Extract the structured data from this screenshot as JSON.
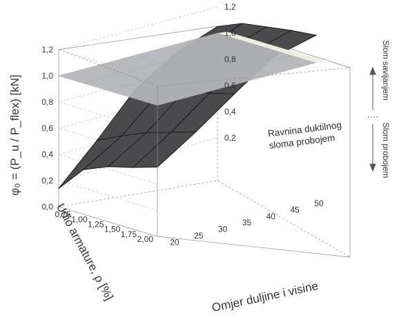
{
  "chart_data": {
    "type": "surface3d",
    "zlabel": "φ₀ = (P_u / P_flex) [kN]",
    "ylabel": "Udio armature, ρ [%]",
    "xlabel": "Omjer duljine i visine",
    "x_ticks": [
      "20",
      "25",
      "30",
      "35",
      "40",
      "45",
      "50"
    ],
    "y_ticks": [
      "0,75",
      "1,00",
      "1,25",
      "1,50",
      "1,75",
      "2,00"
    ],
    "z_ticks": [
      "0,0",
      "0,2",
      "0,4",
      "0,6",
      "0,8",
      "1,0",
      "1,2"
    ],
    "right_z_ticks": [
      "0,2",
      "0,4",
      "0,6",
      "0,8",
      "1,0",
      "1,2"
    ],
    "xlim": [
      17,
      50
    ],
    "ylim": [
      0.5,
      2.0
    ],
    "zlim": [
      0,
      1.2
    ],
    "x": [
      17,
      25,
      33,
      41,
      50
    ],
    "y": [
      0.5,
      0.875,
      1.25,
      1.625,
      2.0
    ],
    "surfaces": [
      {
        "style": "dark",
        "z": [
          [
            0.14,
            0.43,
            0.74,
            0.93,
            1.05
          ],
          [
            0.34,
            0.52,
            0.78,
            1.0,
            1.13
          ],
          [
            0.42,
            0.6,
            0.84,
            1.06,
            1.16
          ],
          [
            0.47,
            0.66,
            0.88,
            1.1,
            1.19
          ],
          [
            0.53,
            0.72,
            0.93,
            1.13,
            1.21
          ]
        ]
      },
      {
        "style": "plane",
        "z": [
          [
            1.0,
            1.0,
            1.0,
            1.0,
            1.0
          ],
          [
            1.0,
            1.0,
            1.0,
            1.0,
            1.0
          ],
          [
            1.0,
            1.0,
            1.0,
            1.0,
            1.0
          ],
          [
            1.0,
            1.0,
            1.0,
            1.0,
            1.0
          ],
          [
            1.0,
            1.0,
            1.0,
            1.0,
            1.0
          ]
        ]
      }
    ],
    "annotation": [
      "Ravnina duktilnog",
      "sloma probojem"
    ],
    "side_labels": {
      "upper": "Slom savijanjem",
      "lower": "Slom probojem"
    },
    "colors": {
      "dark_surface": "#4b4b4e",
      "plane": "#b3b5b8",
      "plane_edge": "#eceedd",
      "frame": "#8a8a8a"
    }
  }
}
